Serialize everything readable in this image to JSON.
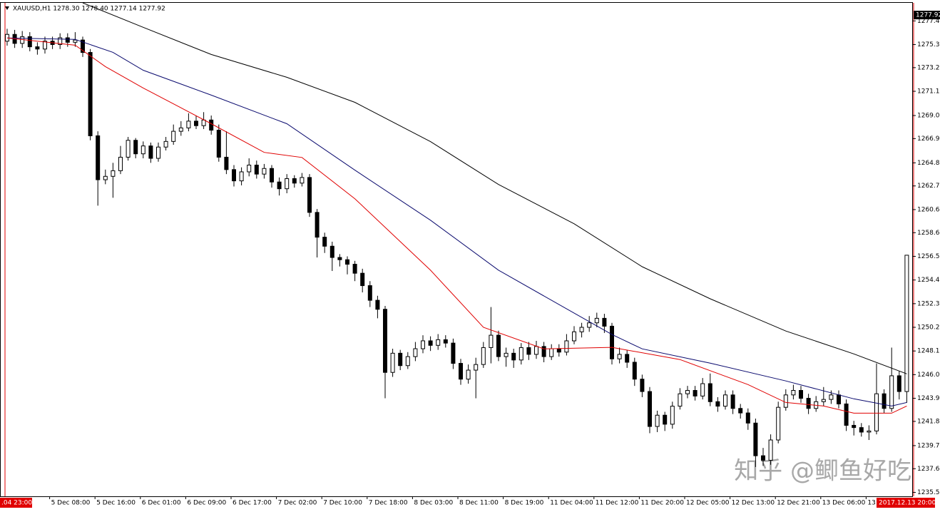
{
  "chart_data": {
    "type": "candlestick",
    "header": "XAUUSD,H1  1278.30 1278.40 1277.14 1277.92",
    "price_label": {
      "value": 1277.92,
      "label": "1277.92"
    },
    "cursor_start_label": ".04 23:00",
    "cursor_end_label": "2017.12.13 20:00",
    "watermark": "知乎 @鲫鱼好吃",
    "categories": [
      null,
      null,
      null,
      null,
      null,
      null,
      "5 Dec 08:00",
      null,
      null,
      null,
      null,
      null,
      "5 Dec 16:00",
      null,
      null,
      null,
      null,
      null,
      "6 Dec 01:00",
      null,
      null,
      null,
      null,
      null,
      "6 Dec 09:00",
      null,
      null,
      null,
      null,
      null,
      "6 Dec 17:00",
      null,
      null,
      null,
      null,
      null,
      "7 Dec 02:00",
      null,
      null,
      null,
      null,
      null,
      "7 Dec 10:00",
      null,
      null,
      null,
      null,
      null,
      "7 Dec 18:00",
      null,
      null,
      null,
      null,
      null,
      "8 Dec 03:00",
      null,
      null,
      null,
      null,
      null,
      "8 Dec 11:00",
      null,
      null,
      null,
      null,
      null,
      "8 Dec 19:00",
      null,
      null,
      null,
      null,
      null,
      "11 Dec 04:00",
      null,
      null,
      null,
      null,
      null,
      "11 Dec 12:00",
      null,
      null,
      null,
      null,
      null,
      "11 Dec 20:00",
      null,
      null,
      null,
      null,
      null,
      "12 Dec 05:00",
      null,
      null,
      null,
      null,
      null,
      "12 Dec 13:00",
      null,
      null,
      null,
      null,
      null,
      "12 Dec 21:00",
      null,
      null,
      null,
      null,
      null,
      "13 Dec 06:00",
      null,
      null,
      null,
      null,
      null,
      "13",
      null,
      null,
      null,
      null,
      null
    ],
    "open": [
      1275.6,
      1276.2,
      1275.4,
      1276.0,
      1275.1,
      1274.9,
      1275.6,
      1275.3,
      1275.9,
      1275.5,
      1275.7,
      1274.6,
      1267.2,
      1263.3,
      1263.6,
      1264.1,
      1265.3,
      1266.8,
      1265.6,
      1266.3,
      1265.2,
      1266.2,
      1266.7,
      1267.6,
      1267.9,
      1268.5,
      1268.1,
      1268.6,
      1267.7,
      1265.3,
      1264.2,
      1263.2,
      1264.0,
      1264.6,
      1263.8,
      1264.3,
      1263.1,
      1262.5,
      1263.4,
      1263.0,
      1263.5,
      1260.4,
      1258.2,
      1257.4,
      1256.4,
      1256.2,
      1255.8,
      1255.0,
      1253.9,
      1252.6,
      1251.8,
      1246.2,
      1247.9,
      1246.8,
      1247.6,
      1248.3,
      1249.0,
      1248.6,
      1249.1,
      1248.8,
      1247.0,
      1245.6,
      1246.4,
      1246.9,
      1248.4,
      1249.5,
      1247.6,
      1247.9,
      1247.3,
      1248.4,
      1247.8,
      1248.5,
      1247.6,
      1248.3,
      1248.0,
      1249.0,
      1249.8,
      1250.2,
      1250.6,
      1251.0,
      1250.3,
      1247.4,
      1247.8,
      1247.1,
      1245.6,
      1244.5,
      1241.4,
      1242.4,
      1241.6,
      1243.2,
      1244.3,
      1244.6,
      1244.1,
      1245.2,
      1243.6,
      1243.2,
      1244.2,
      1243.0,
      1242.6,
      1241.7,
      1238.8,
      1238.4,
      1240.2,
      1243.1,
      1244.2,
      1244.6,
      1243.9,
      1243.0,
      1243.6,
      1243.8,
      1244.2,
      1243.4,
      1241.5,
      1241.3,
      1240.9,
      1241.0,
      1244.3,
      1243.0,
      1245.9,
      1244.5
    ],
    "high": [
      1276.7,
      1276.6,
      1276.5,
      1276.4,
      1275.5,
      1276.0,
      1276.0,
      1276.3,
      1276.3,
      1276.4,
      1276.0,
      1274.9,
      1267.6,
      1264.2,
      1264.8,
      1266.3,
      1267.1,
      1267.0,
      1266.7,
      1266.6,
      1266.6,
      1267.1,
      1268.2,
      1268.5,
      1269.2,
      1269.0,
      1269.3,
      1269.0,
      1268.2,
      1267.6,
      1264.6,
      1264.4,
      1265.2,
      1265.0,
      1264.7,
      1264.6,
      1263.5,
      1263.8,
      1263.7,
      1263.9,
      1263.8,
      1260.7,
      1258.6,
      1257.8,
      1256.7,
      1256.5,
      1256.1,
      1255.4,
      1254.3,
      1253.0,
      1252.1,
      1248.3,
      1248.2,
      1248.0,
      1248.9,
      1249.5,
      1249.4,
      1249.6,
      1249.5,
      1249.2,
      1247.4,
      1246.9,
      1247.5,
      1248.9,
      1252.0,
      1249.9,
      1248.4,
      1248.3,
      1248.8,
      1248.9,
      1249.0,
      1248.9,
      1248.7,
      1248.7,
      1249.6,
      1250.3,
      1250.6,
      1251.2,
      1251.5,
      1251.4,
      1250.6,
      1248.4,
      1248.2,
      1247.5,
      1246.0,
      1244.9,
      1242.8,
      1242.7,
      1243.6,
      1244.8,
      1245.0,
      1245.0,
      1245.7,
      1246.1,
      1244.0,
      1244.6,
      1244.6,
      1243.4,
      1243.0,
      1242.1,
      1239.5,
      1240.7,
      1243.6,
      1244.7,
      1245.1,
      1245.0,
      1244.3,
      1244.1,
      1244.9,
      1244.6,
      1244.6,
      1243.8,
      1241.9,
      1241.7,
      1241.5,
      1247.0,
      1244.7,
      1248.4,
      1246.3,
      1256.6
    ],
    "low": [
      1275.2,
      1275.0,
      1275.0,
      1274.7,
      1274.4,
      1274.5,
      1274.9,
      1274.9,
      1275.1,
      1275.1,
      1274.2,
      1266.8,
      1261.0,
      1262.9,
      1261.7,
      1263.8,
      1265.0,
      1265.2,
      1265.2,
      1264.8,
      1264.9,
      1265.9,
      1266.4,
      1267.2,
      1267.6,
      1267.8,
      1267.8,
      1267.3,
      1264.9,
      1263.8,
      1262.7,
      1262.8,
      1263.6,
      1263.4,
      1263.4,
      1262.6,
      1261.9,
      1262.1,
      1262.6,
      1262.7,
      1260.0,
      1256.4,
      1256.8,
      1255.2,
      1255.6,
      1254.9,
      1254.3,
      1253.3,
      1252.0,
      1251.0,
      1243.9,
      1245.8,
      1246.4,
      1246.5,
      1247.2,
      1247.9,
      1248.1,
      1248.2,
      1248.4,
      1246.5,
      1245.1,
      1245.2,
      1243.9,
      1246.6,
      1247.0,
      1247.2,
      1246.7,
      1246.6,
      1246.9,
      1247.3,
      1247.4,
      1247.1,
      1247.3,
      1247.6,
      1247.7,
      1248.7,
      1249.3,
      1249.8,
      1250.2,
      1249.7,
      1246.9,
      1247.0,
      1246.6,
      1245.0,
      1244.0,
      1240.8,
      1240.9,
      1241.0,
      1241.2,
      1242.9,
      1243.9,
      1243.7,
      1243.8,
      1243.2,
      1242.7,
      1242.9,
      1242.5,
      1242.1,
      1241.1,
      1237.8,
      1237.9,
      1238.0,
      1239.9,
      1242.8,
      1243.8,
      1243.5,
      1242.5,
      1242.7,
      1243.2,
      1243.4,
      1243.0,
      1241.0,
      1240.6,
      1240.5,
      1240.2,
      1240.7,
      1242.6,
      1242.7,
      1243.8,
      1243.5
    ],
    "close": [
      1276.2,
      1275.4,
      1276.0,
      1275.1,
      1274.9,
      1275.6,
      1275.3,
      1275.9,
      1275.5,
      1275.7,
      1274.6,
      1267.2,
      1263.3,
      1263.6,
      1264.1,
      1265.3,
      1266.8,
      1265.6,
      1266.3,
      1265.2,
      1266.2,
      1266.7,
      1267.6,
      1267.9,
      1268.5,
      1268.1,
      1268.6,
      1267.7,
      1265.3,
      1264.2,
      1263.2,
      1264.0,
      1264.6,
      1263.8,
      1264.3,
      1263.1,
      1262.5,
      1263.4,
      1263.0,
      1263.5,
      1260.4,
      1258.2,
      1257.4,
      1256.4,
      1256.2,
      1255.8,
      1255.0,
      1253.9,
      1252.6,
      1251.8,
      1246.2,
      1247.9,
      1246.8,
      1247.6,
      1248.3,
      1249.0,
      1248.6,
      1249.1,
      1248.8,
      1247.0,
      1245.6,
      1246.4,
      1246.9,
      1248.4,
      1249.5,
      1247.6,
      1247.9,
      1247.3,
      1248.4,
      1247.8,
      1248.5,
      1247.6,
      1248.3,
      1248.0,
      1249.0,
      1249.8,
      1250.2,
      1250.6,
      1251.0,
      1250.3,
      1247.4,
      1247.8,
      1247.1,
      1245.6,
      1244.5,
      1241.4,
      1242.4,
      1241.6,
      1243.2,
      1244.3,
      1244.6,
      1244.1,
      1245.2,
      1243.6,
      1243.2,
      1244.2,
      1243.0,
      1242.6,
      1241.7,
      1238.8,
      1238.4,
      1240.2,
      1243.1,
      1244.2,
      1244.6,
      1243.9,
      1243.0,
      1243.6,
      1243.8,
      1244.2,
      1243.4,
      1241.5,
      1241.3,
      1240.9,
      1241.0,
      1244.3,
      1243.0,
      1245.9,
      1244.5,
      1256.6
    ],
    "moving_averages": [
      {
        "color": "#000000",
        "x": [
          10,
          18,
          27,
          37,
          46,
          56,
          65,
          75,
          84,
          93,
          103,
          112,
          119
        ],
        "values": [
          1279.0,
          1276.83,
          1274.42,
          1272.39,
          1270.17,
          1266.68,
          1262.88,
          1259.39,
          1255.58,
          1252.73,
          1249.87,
          1247.84,
          1246.07
        ]
      },
      {
        "color": "#0a0a6e",
        "x": [
          0,
          9,
          14,
          18,
          27,
          37,
          46,
          56,
          65,
          75,
          80,
          84,
          93,
          103,
          112,
          117,
          119
        ],
        "values": [
          1275.88,
          1275.75,
          1274.61,
          1273.02,
          1270.81,
          1268.27,
          1264.15,
          1259.71,
          1255.27,
          1251.46,
          1249.56,
          1248.29,
          1247.02,
          1245.44,
          1243.85,
          1243.21,
          1243.53
        ]
      },
      {
        "color": "#e00000",
        "x": [
          0,
          9,
          13,
          18,
          27,
          34,
          39,
          46,
          56,
          63,
          71,
          80,
          89,
          98,
          103,
          108,
          112,
          117,
          119
        ],
        "values": [
          1275.88,
          1275.24,
          1273.34,
          1271.44,
          1268.27,
          1265.73,
          1265.28,
          1261.61,
          1255.27,
          1250.2,
          1248.29,
          1248.42,
          1247.34,
          1245.12,
          1243.53,
          1243.21,
          1242.58,
          1242.58,
          1243.21
        ]
      }
    ],
    "ylim": [
      1235.2,
      1279.0
    ],
    "yticks": [
      {
        "value": 1235.55,
        "label": "1235.55"
      },
      {
        "value": 1237.65,
        "label": "1237.65"
      },
      {
        "value": 1239.7,
        "label": "1239.70"
      },
      {
        "value": 1241.85,
        "label": "1241.85"
      },
      {
        "value": 1243.9,
        "label": "1243.90"
      },
      {
        "value": 1246.0,
        "label": "1246.00"
      },
      {
        "value": 1248.1,
        "label": "1248.10"
      },
      {
        "value": 1250.2,
        "label": "1250.20"
      },
      {
        "value": 1252.3,
        "label": "1252.30"
      },
      {
        "value": 1254.4,
        "label": "1254.40"
      },
      {
        "value": 1256.5,
        "label": "1256.50"
      },
      {
        "value": 1258.6,
        "label": "1258.60"
      },
      {
        "value": 1260.65,
        "label": "1260.65"
      },
      {
        "value": 1262.75,
        "label": "1262.75"
      },
      {
        "value": 1264.8,
        "label": "1264.80"
      },
      {
        "value": 1266.95,
        "label": "1266.95"
      },
      {
        "value": 1269.0,
        "label": "1269.00"
      },
      {
        "value": 1271.15,
        "label": "1271.15"
      },
      {
        "value": 1273.25,
        "label": "1273.25"
      },
      {
        "value": 1275.3,
        "label": "1275.30"
      },
      {
        "value": 1277.4,
        "label": "1277.40"
      }
    ],
    "up_color": "#ffffff",
    "down_color": "#000000"
  }
}
